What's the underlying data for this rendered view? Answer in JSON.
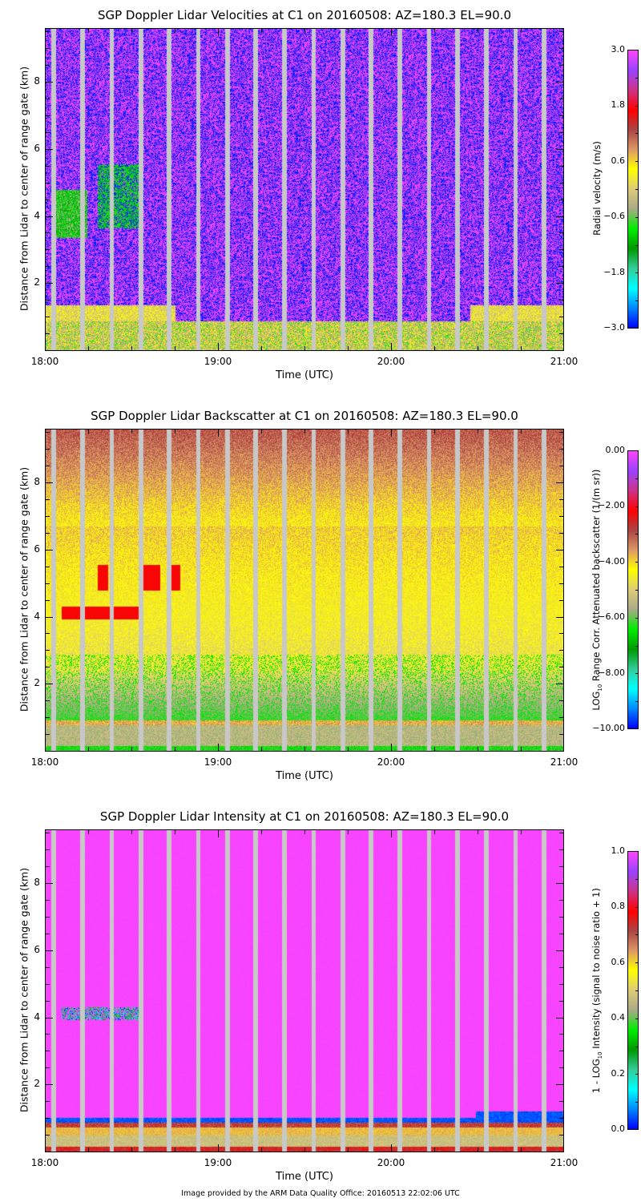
{
  "chart_data": [
    {
      "type": "heatmap",
      "title": "SGP Doppler Lidar Velocities at C1 on 20160508: AZ=180.3 EL=90.0",
      "xlabel": "Time (UTC)",
      "ylabel": "Distance from Lidar to center of range gate (km)",
      "x_ticks": [
        "18:00",
        "19:00",
        "20:00",
        "21:00"
      ],
      "y_ticks": [
        "2",
        "4",
        "6",
        "8"
      ],
      "xlim": [
        "18:00",
        "21:00"
      ],
      "ylim": [
        0,
        9.6
      ],
      "colorbar": {
        "label": "Radial velocity (m/s)",
        "ticks": [
          "3.0",
          "1.8",
          "0.6",
          "-0.6",
          "-1.8",
          "-3.0"
        ],
        "range": [
          -3.0,
          3.0
        ]
      }
    },
    {
      "type": "heatmap",
      "title": "SGP Doppler Lidar Backscatter at C1 on 20160508: AZ=180.3 EL=90.0",
      "xlabel": "Time (UTC)",
      "ylabel": "Distance from Lidar to center of range gate (km)",
      "x_ticks": [
        "18:00",
        "19:00",
        "20:00",
        "21:00"
      ],
      "y_ticks": [
        "2",
        "4",
        "6",
        "8"
      ],
      "xlim": [
        "18:00",
        "21:00"
      ],
      "ylim": [
        0,
        9.6
      ],
      "colorbar": {
        "label_prefix": "LOG",
        "label_sub": "10",
        "label_suffix": " Range Corr. Attenuated backscatter (1/(m sr))",
        "ticks": [
          "0.00",
          "-2.00",
          "-4.00",
          "-6.00",
          "-8.00",
          "-10.00"
        ],
        "range": [
          -10.0,
          0.0
        ]
      }
    },
    {
      "type": "heatmap",
      "title": "SGP Doppler Lidar Intensity at C1 on 20160508: AZ=180.3 EL=90.0",
      "xlabel": "Time (UTC)",
      "ylabel": "Distance from Lidar to center of range gate (km)",
      "x_ticks": [
        "18:00",
        "19:00",
        "20:00",
        "21:00"
      ],
      "y_ticks": [
        "2",
        "4",
        "6",
        "8"
      ],
      "xlim": [
        "18:00",
        "21:00"
      ],
      "ylim": [
        0,
        9.6
      ],
      "colorbar": {
        "label_prefix": "1 - LOG",
        "label_sub": "10",
        "label_suffix": " Intensity (signal to noise ratio + 1)",
        "ticks": [
          "1.0",
          "0.8",
          "0.6",
          "0.4",
          "0.2",
          "0.0"
        ],
        "range": [
          0.0,
          1.0
        ]
      }
    }
  ],
  "colormap": [
    "#0000ff",
    "#0088ff",
    "#00ffff",
    "#33cc99",
    "#009900",
    "#00ee00",
    "#aaaa88",
    "#ddcc77",
    "#ffff00",
    "#dd9966",
    "#aa4444",
    "#ff0000",
    "#cc3388",
    "#9944ff",
    "#ff44ff"
  ],
  "gap_color": "#c8c8c8",
  "gap_times_frac": [
    0.015,
    0.071,
    0.127,
    0.183,
    0.238,
    0.294,
    0.35,
    0.405,
    0.461,
    0.517,
    0.573,
    0.628,
    0.684,
    0.74,
    0.795,
    0.851,
    0.907,
    0.962
  ],
  "footer": "Image provided by the ARM Data Quality Office: 20160513 22:02:06 UTC"
}
